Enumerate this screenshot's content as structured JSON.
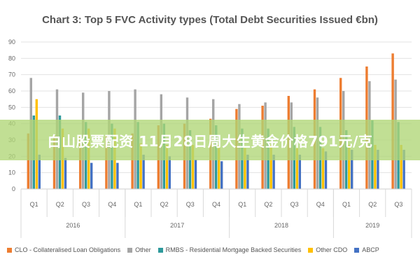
{
  "banner_text": "白山股票配资 11月28日周大生黄金价格791元/克",
  "chart_data": {
    "type": "bar",
    "title": "Chart 3: Top 5 FVC Activity types (Total Debt Securities Issued €bn)",
    "ylim": [
      0,
      90
    ],
    "yticks": [
      0,
      10,
      20,
      30,
      40,
      50,
      60,
      70,
      80,
      90
    ],
    "grid": true,
    "legend_position": "bottom",
    "categories": [
      "Q1",
      "Q2",
      "Q3",
      "Q4",
      "Q1",
      "Q2",
      "Q3",
      "Q4",
      "Q1",
      "Q2",
      "Q3",
      "Q4",
      "Q1",
      "Q2",
      "Q3"
    ],
    "year_groups": [
      {
        "label": "2016",
        "count": 4
      },
      {
        "label": "2017",
        "count": 4
      },
      {
        "label": "2018",
        "count": 4
      },
      {
        "label": "2019",
        "count": 3
      }
    ],
    "series": [
      {
        "name": "CLO - Collateralised Loan Obligations",
        "color": "#ED7D31",
        "values": [
          34,
          33,
          33,
          33,
          34,
          39,
          40,
          43,
          49,
          51,
          57,
          61,
          68,
          75,
          83
        ]
      },
      {
        "name": "Other",
        "color": "#A5A5A5",
        "values": [
          68,
          61,
          59,
          60,
          61,
          58,
          56,
          55,
          52,
          53,
          53,
          56,
          60,
          66,
          67
        ]
      },
      {
        "name": "RMBS - Residential Mortgage Backed Securities",
        "color": "#2E9A9C",
        "values": [
          45,
          45,
          41,
          40,
          41,
          40,
          36,
          39,
          37,
          37,
          38,
          38,
          36,
          42,
          41
        ]
      },
      {
        "name": "Other CDO",
        "color": "#FFC000",
        "values": [
          55,
          37,
          37,
          37,
          28,
          27,
          27,
          27,
          25,
          27,
          25,
          25,
          27,
          27,
          27
        ]
      },
      {
        "name": "ABCP",
        "color": "#4472C4",
        "values": [
          21,
          19,
          16,
          16,
          21,
          20,
          18,
          17,
          21,
          21,
          21,
          23,
          24,
          24,
          24
        ]
      }
    ]
  }
}
